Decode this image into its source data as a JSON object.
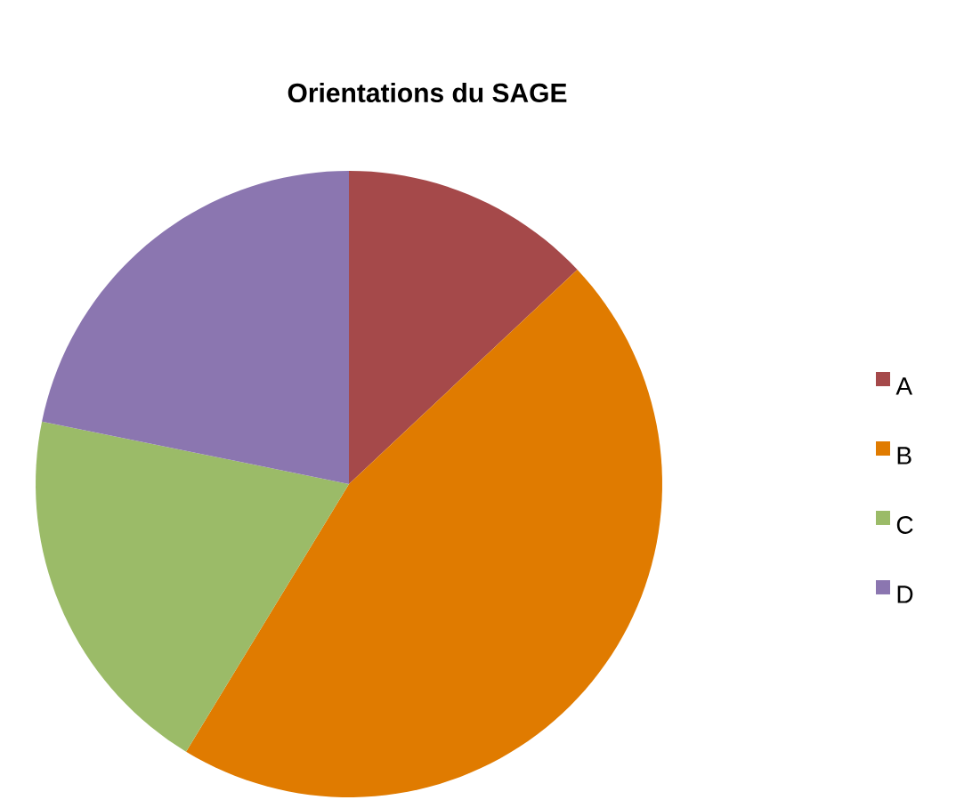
{
  "chart_data": {
    "type": "pie",
    "title": "Orientations du SAGE",
    "categories": [
      "A",
      "B",
      "C",
      "D"
    ],
    "values": [
      13,
      45.7,
      19.5,
      21.8
    ],
    "colors": [
      "#a5494a",
      "#e07b00",
      "#9bbb68",
      "#8b76b0"
    ],
    "legend": "right"
  }
}
